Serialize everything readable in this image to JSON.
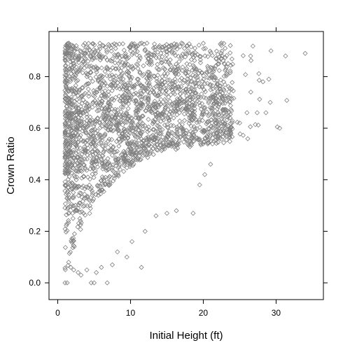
{
  "chart_data": {
    "type": "scatter",
    "title": "",
    "xlabel": "Initial Height (ft)",
    "ylabel": "Crown Ratio",
    "xlim": [
      -1.2,
      36.5
    ],
    "ylim": [
      -0.065,
      0.975
    ],
    "x_ticks": [
      0,
      10,
      20,
      30
    ],
    "y_ticks": [
      0.0,
      0.2,
      0.4,
      0.6,
      0.8
    ],
    "x_tick_labels": [
      "0",
      "10",
      "20",
      "30"
    ],
    "y_tick_labels": [
      "0.0",
      "0.2",
      "0.4",
      "0.6",
      "0.8"
    ],
    "marker": "diamond-open",
    "point_color": "#808080",
    "grid": false,
    "legend": "none",
    "sample_points": [
      [
        1.0,
        0.0
      ],
      [
        1.3,
        0.0
      ],
      [
        4.6,
        0.0
      ],
      [
        5.0,
        0.0
      ],
      [
        6.8,
        0.0
      ],
      [
        1.5,
        0.08
      ],
      [
        1.8,
        0.06
      ],
      [
        2.2,
        0.05
      ],
      [
        2.8,
        0.04
      ],
      [
        3.2,
        0.03
      ],
      [
        4.0,
        0.05
      ],
      [
        5.3,
        0.04
      ],
      [
        6.0,
        0.06
      ],
      [
        7.5,
        0.07
      ],
      [
        8.2,
        0.12
      ],
      [
        9.5,
        0.1
      ],
      [
        11.5,
        0.06
      ],
      [
        10.2,
        0.16
      ],
      [
        12.0,
        0.2
      ],
      [
        13.5,
        0.26
      ],
      [
        15.0,
        0.27
      ],
      [
        16.3,
        0.28
      ],
      [
        18.6,
        0.27
      ],
      [
        19.5,
        0.38
      ],
      [
        20.2,
        0.42
      ],
      [
        21.0,
        0.46
      ],
      [
        22.0,
        0.57
      ],
      [
        23.0,
        0.6
      ],
      [
        23.8,
        0.58
      ],
      [
        25.0,
        0.62
      ],
      [
        26.0,
        0.66
      ],
      [
        27.4,
        0.66
      ],
      [
        28.6,
        0.66
      ],
      [
        29.2,
        0.7
      ],
      [
        30.5,
        0.6
      ],
      [
        28.2,
        0.78
      ],
      [
        29.0,
        0.79
      ],
      [
        26.5,
        0.88
      ],
      [
        29.3,
        0.9
      ],
      [
        31.3,
        0.88
      ],
      [
        34.0,
        0.89
      ],
      [
        22.5,
        0.93
      ],
      [
        23.0,
        0.91
      ],
      [
        17.0,
        0.93
      ],
      [
        14.0,
        0.92
      ],
      [
        10.0,
        0.9
      ],
      [
        4.0,
        0.8
      ],
      [
        2.2,
        0.82
      ],
      [
        1.6,
        0.8
      ]
    ]
  }
}
